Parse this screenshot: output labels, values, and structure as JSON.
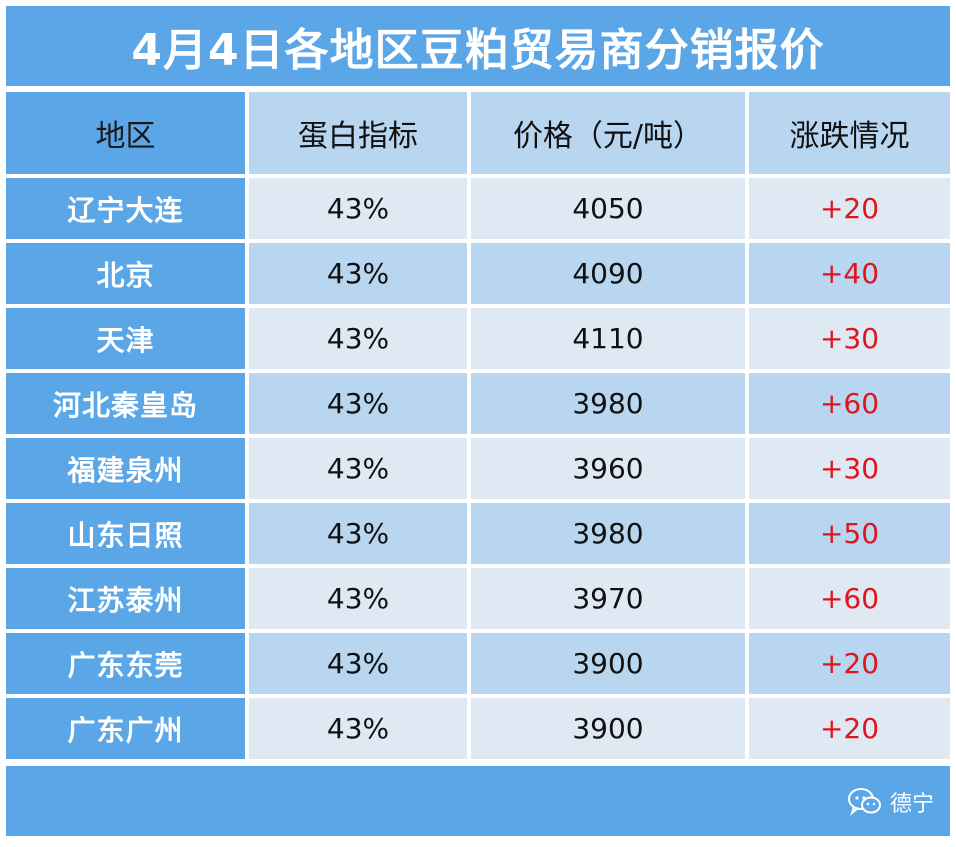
{
  "title": "4月4日各地区豆粕贸易商分销报价",
  "headers": {
    "region": "地区",
    "protein": "蛋白指标",
    "price": "价格（元/吨）",
    "change": "涨跌情况"
  },
  "rows": [
    {
      "region": "辽宁大连",
      "protein": "43%",
      "price": "4050",
      "change": "+20"
    },
    {
      "region": "北京",
      "protein": "43%",
      "price": "4090",
      "change": "+40"
    },
    {
      "region": "天津",
      "protein": "43%",
      "price": "4110",
      "change": "+30"
    },
    {
      "region": "河北秦皇岛",
      "protein": "43%",
      "price": "3980",
      "change": "+60"
    },
    {
      "region": "福建泉州",
      "protein": "43%",
      "price": "3960",
      "change": "+30"
    },
    {
      "region": "山东日照",
      "protein": "43%",
      "price": "3980",
      "change": "+50"
    },
    {
      "region": "江苏泰州",
      "protein": "43%",
      "price": "3970",
      "change": "+60"
    },
    {
      "region": "广东东莞",
      "protein": "43%",
      "price": "3900",
      "change": "+20"
    },
    {
      "region": "广东广州",
      "protein": "43%",
      "price": "3900",
      "change": "+20"
    }
  ],
  "watermark": {
    "text": "德宁",
    "icon": "wechat-icon"
  },
  "colors": {
    "title_bg": "#5aa6e6",
    "header_light": "#b9d6f0",
    "row_light": "#dfe9f4",
    "change_color": "#e0141e"
  }
}
